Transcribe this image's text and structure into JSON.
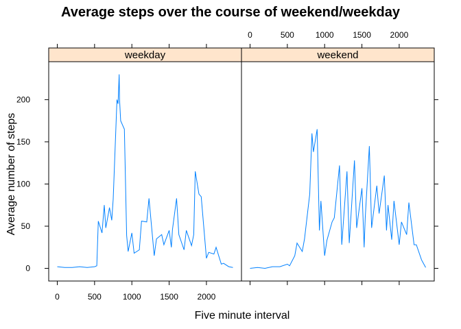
{
  "chart_data": {
    "type": "line",
    "title": "Average steps over the course of weekend/weekday",
    "xlabel": "Five minute interval",
    "ylabel": "Average number of steps",
    "xlim": [
      -115,
      2470
    ],
    "ylim": [
      -15,
      245
    ],
    "xticks": [
      0,
      500,
      1000,
      1500,
      2000
    ],
    "yticks": [
      0,
      50,
      100,
      150,
      200
    ],
    "line_color": "#0080ff",
    "strip_color": "#ffe5cc",
    "panels": [
      {
        "name": "weekday",
        "x": [
          0,
          100,
          200,
          300,
          400,
          500,
          530,
          550,
          600,
          630,
          650,
          700,
          730,
          750,
          800,
          815,
          830,
          835,
          850,
          900,
          930,
          950,
          1000,
          1030,
          1100,
          1130,
          1200,
          1230,
          1300,
          1330,
          1400,
          1430,
          1500,
          1530,
          1545,
          1600,
          1630,
          1700,
          1730,
          1800,
          1830,
          1850,
          1900,
          1930,
          2000,
          2030,
          2100,
          2130,
          2200,
          2230,
          2300,
          2355
        ],
        "values": [
          2,
          1,
          1,
          2,
          1,
          2,
          3,
          56,
          42,
          75,
          48,
          72,
          57,
          82,
          200,
          195,
          230,
          200,
          175,
          165,
          39,
          20,
          42,
          18,
          22,
          56,
          55,
          83,
          15,
          35,
          40,
          28,
          45,
          25,
          46,
          83,
          40,
          22,
          45,
          27,
          40,
          115,
          88,
          85,
          12,
          19,
          17,
          25,
          5,
          6,
          2,
          1
        ]
      },
      {
        "name": "weekend",
        "x": [
          0,
          100,
          200,
          300,
          400,
          500,
          530,
          600,
          630,
          700,
          730,
          800,
          830,
          850,
          900,
          930,
          950,
          1000,
          1030,
          1100,
          1130,
          1200,
          1230,
          1300,
          1330,
          1400,
          1430,
          1500,
          1530,
          1545,
          1600,
          1630,
          1700,
          1730,
          1800,
          1830,
          1850,
          1900,
          1930,
          2000,
          2030,
          2100,
          2130,
          2200,
          2230,
          2300,
          2355
        ],
        "values": [
          0,
          1,
          0,
          2,
          2,
          5,
          3,
          15,
          30,
          20,
          35,
          88,
          160,
          138,
          165,
          45,
          80,
          15,
          33,
          55,
          60,
          122,
          28,
          115,
          30,
          128,
          48,
          95,
          25,
          60,
          145,
          48,
          98,
          65,
          110,
          45,
          75,
          34,
          80,
          28,
          55,
          40,
          78,
          28,
          28,
          10,
          1
        ]
      }
    ]
  }
}
